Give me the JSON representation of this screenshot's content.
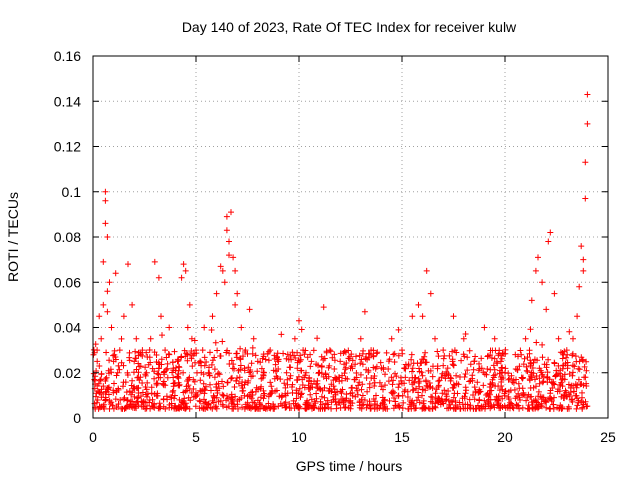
{
  "chart_data": {
    "type": "scatter",
    "title": "Day 140 of 2023, Rate Of TEC Index for receiver kulw",
    "xlabel": "GPS time / hours",
    "ylabel": "ROTI / TECUs",
    "xlim": [
      0,
      25
    ],
    "ylim": [
      0,
      0.16
    ],
    "x_ticks": [
      0,
      5,
      10,
      15,
      20,
      25
    ],
    "x_tick_labels": [
      "0",
      "5",
      "10",
      "15",
      "20",
      "25"
    ],
    "y_ticks": [
      0,
      0.02,
      0.04,
      0.06,
      0.08,
      0.1,
      0.12,
      0.14,
      0.16
    ],
    "y_tick_labels": [
      "0",
      "0.02",
      "0.04",
      "0.06",
      "0.08",
      "0.1",
      "0.12",
      "0.14",
      "0.16"
    ],
    "grid": true,
    "marker": "+",
    "color": "#ff0000",
    "series": [
      {
        "name": "ROTI",
        "x": [
          0.1,
          0.2,
          0.3,
          0.4,
          0.5,
          0.5,
          0.6,
          0.6,
          0.6,
          0.7,
          0.7,
          0.7,
          0.8,
          0.9,
          1.0,
          1.1,
          1.2,
          1.3,
          1.5,
          1.7,
          1.9,
          2.0,
          2.1,
          2.3,
          2.4,
          2.6,
          2.8,
          3.0,
          3.2,
          3.3,
          3.5,
          3.7,
          3.9,
          4.1,
          4.3,
          4.4,
          4.5,
          4.6,
          4.7,
          4.8,
          5.0,
          5.2,
          5.4,
          5.6,
          5.8,
          6.0,
          6.2,
          6.3,
          6.4,
          6.5,
          6.5,
          6.6,
          6.6,
          6.7,
          6.8,
          6.9,
          6.9,
          7.0,
          7.2,
          7.4,
          7.6,
          7.8,
          8.0,
          8.3,
          8.6,
          9.0,
          9.4,
          9.8,
          10.0,
          10.2,
          10.6,
          11.0,
          11.2,
          11.5,
          12.0,
          12.5,
          13.0,
          13.2,
          13.5,
          14.0,
          14.5,
          15.0,
          15.5,
          15.8,
          16.0,
          16.2,
          16.4,
          16.6,
          17.0,
          17.5,
          18.0,
          18.5,
          19.0,
          19.5,
          19.8,
          20.0,
          20.5,
          21.0,
          21.3,
          21.5,
          21.6,
          21.8,
          22.0,
          22.1,
          22.2,
          22.4,
          22.6,
          23.0,
          23.3,
          23.5,
          23.6,
          23.7,
          23.8,
          23.8,
          23.9,
          23.9,
          24.0,
          24.0
        ],
        "y": [
          0.015,
          0.03,
          0.045,
          0.035,
          0.05,
          0.069,
          0.1,
          0.096,
          0.086,
          0.08,
          0.056,
          0.047,
          0.06,
          0.04,
          0.025,
          0.064,
          0.02,
          0.03,
          0.045,
          0.068,
          0.05,
          0.025,
          0.035,
          0.018,
          0.03,
          0.02,
          0.035,
          0.069,
          0.062,
          0.045,
          0.03,
          0.04,
          0.022,
          0.025,
          0.062,
          0.068,
          0.065,
          0.04,
          0.05,
          0.035,
          0.03,
          0.025,
          0.04,
          0.02,
          0.045,
          0.055,
          0.067,
          0.065,
          0.06,
          0.089,
          0.083,
          0.078,
          0.072,
          0.091,
          0.071,
          0.065,
          0.05,
          0.055,
          0.04,
          0.03,
          0.048,
          0.035,
          0.025,
          0.02,
          0.03,
          0.025,
          0.02,
          0.035,
          0.043,
          0.03,
          0.025,
          0.02,
          0.049,
          0.03,
          0.025,
          0.022,
          0.035,
          0.047,
          0.03,
          0.022,
          0.035,
          0.03,
          0.045,
          0.05,
          0.045,
          0.065,
          0.055,
          0.035,
          0.03,
          0.045,
          0.035,
          0.025,
          0.04,
          0.035,
          0.025,
          0.02,
          0.028,
          0.035,
          0.052,
          0.065,
          0.071,
          0.06,
          0.048,
          0.078,
          0.082,
          0.055,
          0.035,
          0.03,
          0.035,
          0.045,
          0.058,
          0.076,
          0.065,
          0.07,
          0.097,
          0.113,
          0.13,
          0.143
        ],
        "baseline_band": [
          0.004,
          0.03
        ]
      }
    ]
  }
}
